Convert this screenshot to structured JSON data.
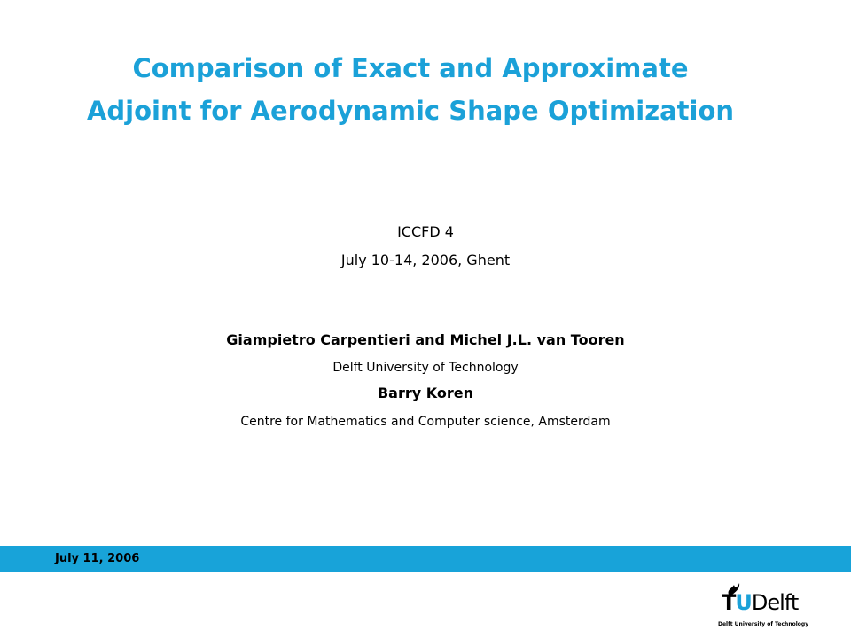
{
  "header": {
    "title_lines": [
      "Comparison of Exact and Approximate",
      "Adjoint for Aerodynamic Shape Optimization"
    ]
  },
  "event": {
    "name": "ICCFD 4",
    "date_place": "July 10-14, 2006, Ghent"
  },
  "authors": [
    {
      "names": "Giampietro Carpentieri and Michel J.L. van Tooren",
      "affiliation": "Delft University of Technology"
    },
    {
      "names": "Barry Koren",
      "affiliation": "Centre for Mathematics and Computer science,  Amsterdam"
    }
  ],
  "footer": {
    "date": "July 11, 2006"
  },
  "logo": {
    "wordmark": [
      "T",
      "U",
      "Delft"
    ],
    "subtitle": "Delft University of Technology"
  }
}
